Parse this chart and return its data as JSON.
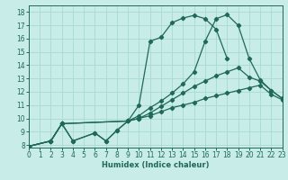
{
  "xlabel": "Humidex (Indice chaleur)",
  "xlim": [
    0,
    23
  ],
  "ylim": [
    7.8,
    18.5
  ],
  "xticks": [
    0,
    1,
    2,
    3,
    4,
    5,
    6,
    7,
    8,
    9,
    10,
    11,
    12,
    13,
    14,
    15,
    16,
    17,
    18,
    19,
    20,
    21,
    22,
    23
  ],
  "yticks": [
    8,
    9,
    10,
    11,
    12,
    13,
    14,
    15,
    16,
    17,
    18
  ],
  "background_color": "#c8ece8",
  "grid_color": "#a8d8d2",
  "line_color": "#206858",
  "series": [
    {
      "x": [
        0,
        2,
        3,
        4,
        6,
        7,
        8,
        9,
        10,
        11,
        12,
        13,
        14,
        15,
        16,
        17,
        18
      ],
      "y": [
        7.9,
        8.3,
        9.6,
        8.3,
        8.9,
        8.3,
        9.1,
        9.8,
        11.0,
        15.8,
        16.1,
        17.2,
        17.55,
        17.75,
        17.5,
        16.7,
        14.5
      ]
    },
    {
      "x": [
        0,
        2,
        3,
        4,
        6,
        7,
        8,
        9,
        10,
        11,
        12,
        13,
        14,
        15,
        16,
        17,
        18,
        19,
        20,
        21,
        22,
        23
      ],
      "y": [
        7.9,
        8.3,
        9.6,
        8.3,
        8.9,
        8.3,
        9.1,
        9.8,
        10.2,
        10.8,
        11.3,
        11.9,
        12.6,
        13.5,
        15.8,
        17.5,
        17.8,
        17.0,
        14.5,
        12.9,
        12.1,
        11.5
      ]
    },
    {
      "x": [
        0,
        2,
        3,
        9,
        10,
        11,
        12,
        13,
        14,
        15,
        16,
        17,
        18,
        19,
        20,
        21,
        22,
        23
      ],
      "y": [
        7.9,
        8.3,
        9.6,
        9.8,
        10.0,
        10.4,
        10.9,
        11.4,
        11.9,
        12.4,
        12.8,
        13.2,
        13.5,
        13.8,
        13.1,
        12.8,
        12.1,
        11.5
      ]
    },
    {
      "x": [
        0,
        2,
        3,
        9,
        10,
        11,
        12,
        13,
        14,
        15,
        16,
        17,
        18,
        19,
        20,
        21,
        22,
        23
      ],
      "y": [
        7.9,
        8.3,
        9.6,
        9.8,
        10.0,
        10.2,
        10.5,
        10.8,
        11.0,
        11.2,
        11.5,
        11.7,
        11.9,
        12.1,
        12.3,
        12.5,
        11.8,
        11.4
      ]
    }
  ]
}
